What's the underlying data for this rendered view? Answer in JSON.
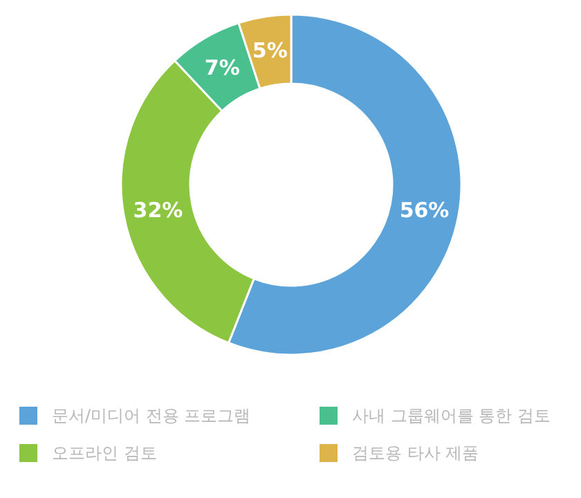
{
  "chart_data": {
    "type": "donut",
    "categories": [
      "문서/미디어 전용 프로그램",
      "오프라인 검토",
      "사내 그룹웨어를 통한 검토",
      "검토용 타사 제품"
    ],
    "values": [
      56,
      32,
      7,
      5
    ],
    "colors": [
      "#5ba3d9",
      "#8cc540",
      "#4bc08f",
      "#dcb44a"
    ],
    "value_labels": [
      "56%",
      "32%",
      "7%",
      "5%"
    ],
    "legend": "bottom"
  }
}
